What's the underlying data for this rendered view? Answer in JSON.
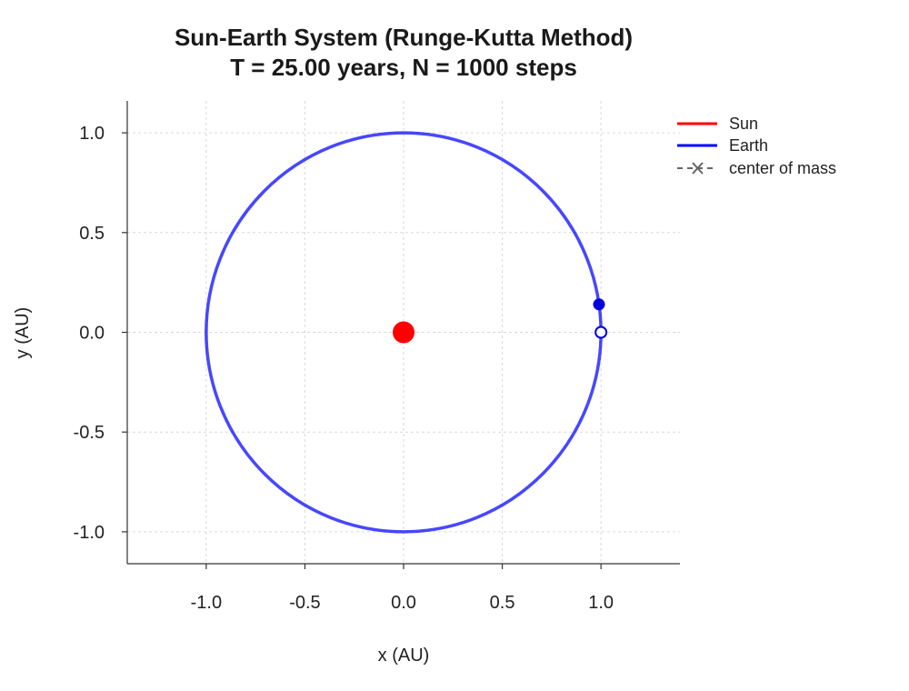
{
  "chart_data": {
    "type": "line",
    "title": "Sun-Earth System (Runge-Kutta Method)",
    "subtitle": "T = 25.00 years, N = 1000 steps",
    "xlabel": "x (AU)",
    "ylabel": "y (AU)",
    "xlim": [
      -1.4,
      1.4
    ],
    "ylim": [
      -1.16,
      1.16
    ],
    "xticks": [
      -1.0,
      -0.5,
      0.0,
      0.5,
      1.0
    ],
    "yticks": [
      -1.0,
      -0.5,
      0.0,
      0.5,
      1.0
    ],
    "xtick_labels": [
      "-1.0",
      "-0.5",
      "0.0",
      "0.5",
      "1.0"
    ],
    "ytick_labels": [
      "-1.0",
      "-0.5",
      "0.0",
      "0.5",
      "1.0"
    ],
    "grid": true,
    "legend_position": "top-right, outside plot area",
    "series": [
      {
        "name": "Sun",
        "color": "#ff0000",
        "line_style": "solid",
        "x": [
          0.0
        ],
        "y": [
          0.0
        ]
      },
      {
        "name": "Earth",
        "color": "#0000ff",
        "line_style": "solid",
        "trajectory": "circle",
        "radius": 1.0,
        "center": [
          0.0,
          0.0
        ]
      },
      {
        "name": "center of mass",
        "color": "#666666",
        "line_style": "dashed",
        "marker": "x"
      }
    ],
    "points": [
      {
        "label": "Sun (final position)",
        "x": 0.0,
        "y": 0.0,
        "color": "#ff0000",
        "style": "filled"
      },
      {
        "label": "Earth (final position)",
        "x": 0.99,
        "y": 0.14,
        "color": "#0000dd",
        "style": "filled"
      },
      {
        "label": "Earth (initial position)",
        "x": 1.0,
        "y": 0.0,
        "color": "#0000dd",
        "style": "hollow"
      }
    ]
  }
}
